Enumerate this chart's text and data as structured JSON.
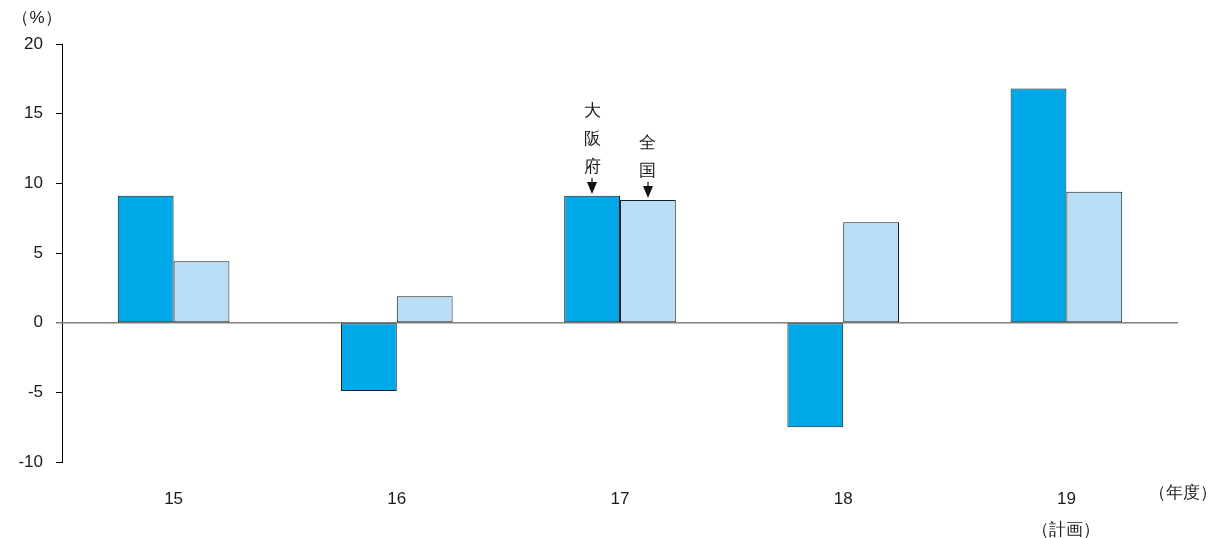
{
  "chart_data": {
    "type": "bar",
    "ylabel": "（%）",
    "xlabel": "（年度）",
    "categories": [
      "15",
      "16",
      "17",
      "18",
      "19\n（計画）"
    ],
    "series": [
      {
        "name": "大阪府",
        "color": "#00a8e8",
        "values": [
          9.1,
          -4.9,
          9.1,
          -7.5,
          16.8
        ]
      },
      {
        "name": "全国",
        "color": "#b8dff5",
        "values": [
          4.4,
          1.9,
          8.8,
          7.2,
          9.4
        ]
      }
    ],
    "ylim": [
      -10,
      20
    ],
    "yticks": [
      -10,
      -5,
      0,
      5,
      10,
      15,
      20
    ]
  }
}
